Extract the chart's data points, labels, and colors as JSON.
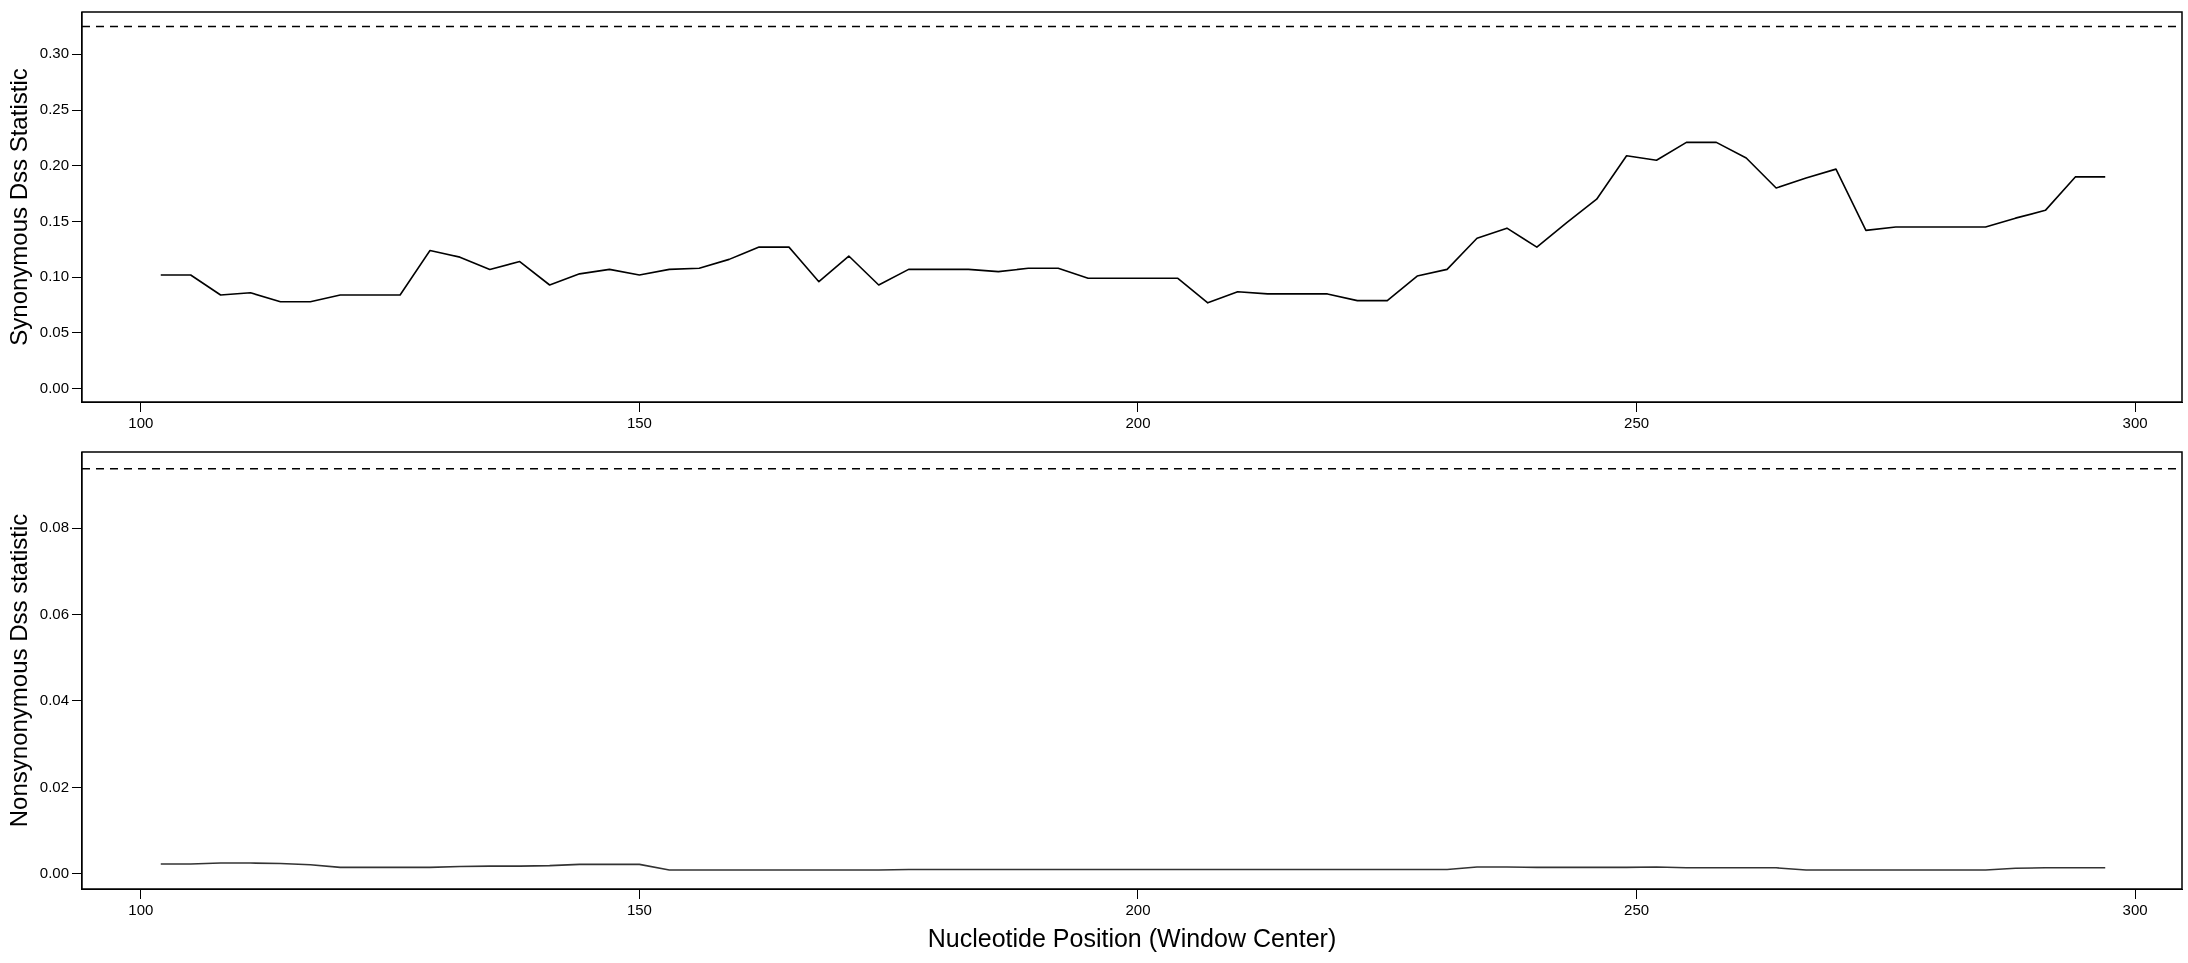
{
  "chart_data": [
    {
      "type": "line",
      "ylabel": "Synonymous Dss Statistic",
      "x": [
        102,
        105,
        108,
        111,
        114,
        117,
        120,
        123,
        126,
        129,
        132,
        135,
        138,
        141,
        144,
        147,
        150,
        153,
        156,
        159,
        162,
        165,
        168,
        171,
        174,
        177,
        180,
        183,
        186,
        189,
        192,
        195,
        198,
        201,
        204,
        207,
        210,
        213,
        216,
        219,
        222,
        225,
        228,
        231,
        234,
        237,
        240,
        243,
        246,
        249,
        252,
        255,
        258,
        261,
        264,
        267,
        270,
        273,
        276,
        279,
        282,
        285,
        288,
        291,
        294,
        297
      ],
      "series": [
        {
          "color": "#000000",
          "values": [
            0.102,
            0.102,
            0.084,
            0.086,
            0.078,
            0.078,
            0.084,
            0.084,
            0.084,
            0.124,
            0.118,
            0.107,
            0.114,
            0.093,
            0.103,
            0.107,
            0.102,
            0.107,
            0.108,
            0.116,
            0.127,
            0.127,
            0.096,
            0.119,
            0.093,
            0.107,
            0.107,
            0.107,
            0.105,
            0.108,
            0.108,
            0.099,
            0.099,
            0.099,
            0.099,
            0.077,
            0.087,
            0.085,
            0.085,
            0.085,
            0.079,
            0.079,
            0.101,
            0.107,
            0.135,
            0.144,
            0.127,
            0.149,
            0.17,
            0.209,
            0.205,
            0.221,
            0.221,
            0.207,
            0.18,
            0.189,
            0.197,
            0.142,
            0.145,
            0.145,
            0.145,
            0.145,
            0.153,
            0.16,
            0.19,
            0.19
          ]
        }
      ],
      "xlim": [
        94.1,
        304.7
      ],
      "xticks": [
        100,
        150,
        200,
        250,
        300
      ],
      "ylim": [
        -0.012,
        0.338
      ],
      "yticks": [
        {
          "value": 0,
          "label": "0.00"
        },
        {
          "value": 0.05,
          "label": "0.05"
        },
        {
          "value": 0.1,
          "label": "0.10"
        },
        {
          "value": 0.15,
          "label": "0.15"
        },
        {
          "value": 0.2,
          "label": "0.20"
        },
        {
          "value": 0.25,
          "label": "0.25"
        },
        {
          "value": 0.3,
          "label": "0.30"
        }
      ],
      "ref_lines": [
        {
          "axis": "y",
          "value": 0.325,
          "line_style": "dashed",
          "color": "#000000"
        }
      ],
      "grid": false,
      "legend": false,
      "marker": "none",
      "line_style": "solid"
    },
    {
      "type": "line",
      "ylabel": "Nonsynonymous Dss statistic",
      "xlabel": "Nucleotide Position (Window Center)",
      "x": [
        102,
        105,
        108,
        111,
        114,
        117,
        120,
        123,
        126,
        129,
        132,
        135,
        138,
        141,
        144,
        147,
        150,
        153,
        156,
        159,
        162,
        165,
        168,
        171,
        174,
        177,
        180,
        183,
        186,
        189,
        192,
        195,
        198,
        201,
        204,
        207,
        210,
        213,
        216,
        219,
        222,
        225,
        228,
        231,
        234,
        237,
        240,
        243,
        246,
        249,
        252,
        255,
        258,
        261,
        264,
        267,
        270,
        273,
        276,
        279,
        282,
        285,
        288,
        291,
        294,
        297
      ],
      "series": [
        {
          "color": "#333333",
          "values": [
            0.0023,
            0.0023,
            0.0025,
            0.0025,
            0.0024,
            0.0021,
            0.0015,
            0.0015,
            0.0015,
            0.0015,
            0.0017,
            0.0018,
            0.0018,
            0.0019,
            0.0022,
            0.0022,
            0.0022,
            0.0009,
            0.0009,
            0.0009,
            0.0009,
            0.0009,
            0.0009,
            0.0009,
            0.0009,
            0.001,
            0.001,
            0.001,
            0.001,
            0.001,
            0.001,
            0.001,
            0.001,
            0.001,
            0.001,
            0.001,
            0.001,
            0.001,
            0.001,
            0.001,
            0.001,
            0.001,
            0.001,
            0.001,
            0.0016,
            0.0016,
            0.0015,
            0.0015,
            0.0015,
            0.0015,
            0.0016,
            0.0014,
            0.0014,
            0.0014,
            0.0014,
            0.0009,
            0.0009,
            0.0009,
            0.0009,
            0.0009,
            0.0009,
            0.0009,
            0.0013,
            0.0014,
            0.0014,
            0.0014
          ]
        }
      ],
      "xlim": [
        94.1,
        304.7
      ],
      "xticks": [
        100,
        150,
        200,
        250,
        300
      ],
      "ylim": [
        -0.0035,
        0.0976
      ],
      "yticks": [
        {
          "value": 0,
          "label": "0.00"
        },
        {
          "value": 0.02,
          "label": "0.02"
        },
        {
          "value": 0.04,
          "label": "0.04"
        },
        {
          "value": 0.06,
          "label": "0.06"
        },
        {
          "value": 0.08,
          "label": "0.08"
        }
      ],
      "ref_lines": [
        {
          "axis": "y",
          "value": 0.0937,
          "line_style": "dashed",
          "color": "#000000"
        }
      ],
      "grid": false,
      "legend": false,
      "marker": "none",
      "line_style": "solid"
    }
  ]
}
